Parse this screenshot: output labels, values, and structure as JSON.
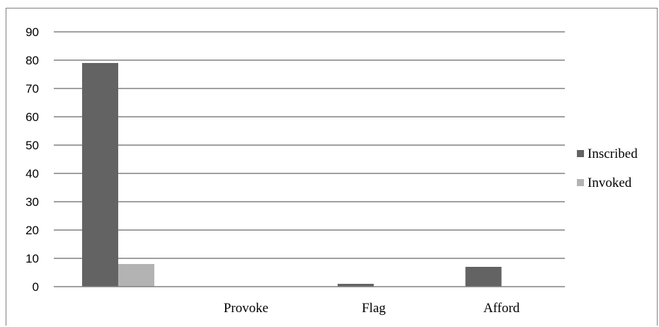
{
  "chart_data": {
    "type": "bar",
    "title": "",
    "xlabel": "",
    "ylabel": "",
    "categories": [
      "",
      "Provoke",
      "Flag",
      "Afford"
    ],
    "series": [
      {
        "name": "Inscribed",
        "values": [
          79,
          0,
          1,
          7
        ],
        "color": "#636363"
      },
      {
        "name": "Invoked",
        "values": [
          8,
          0,
          0,
          0
        ],
        "color": "#b3b3b3"
      }
    ],
    "ylim": [
      0,
      90
    ],
    "y_ticks": [
      0,
      10,
      20,
      30,
      40,
      50,
      60,
      70,
      80,
      90
    ],
    "grid": true,
    "legend_position": "right"
  }
}
